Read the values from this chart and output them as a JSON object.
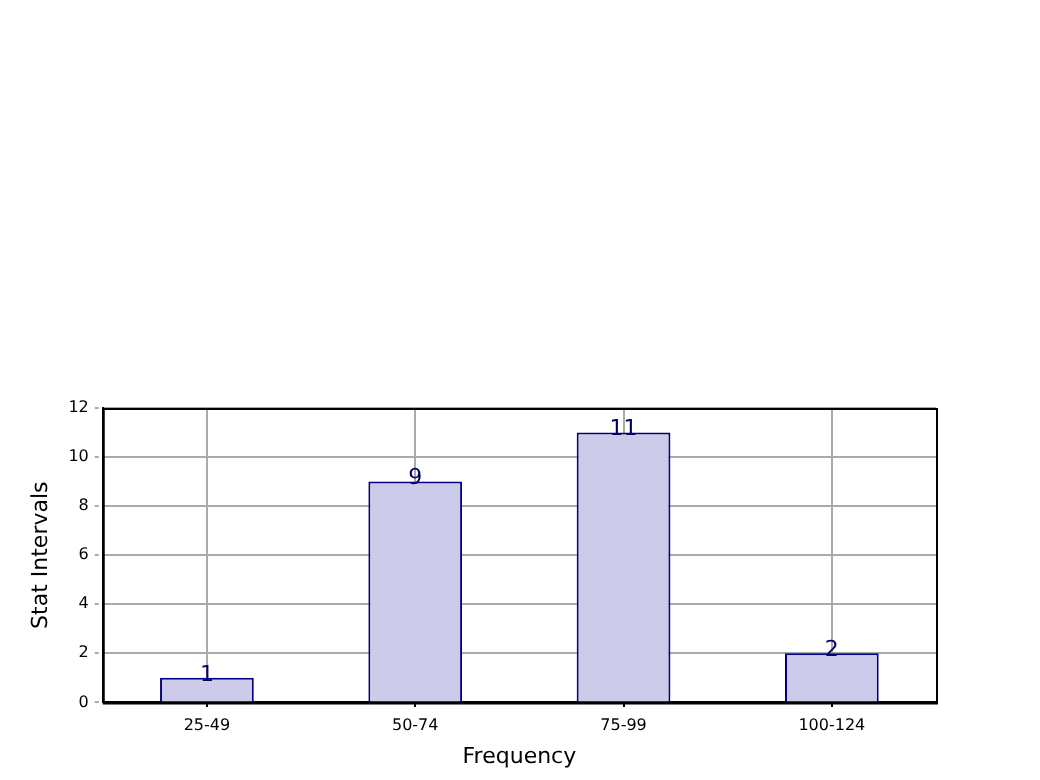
{
  "chart_data": {
    "type": "bar",
    "xlabel": "Frequency",
    "ylabel": "Stat Intervals",
    "categories": [
      "25-49",
      "50-74",
      "75-99",
      "100-124"
    ],
    "values": [
      1,
      9,
      11,
      2
    ],
    "color": "#ccccea",
    "ylim": [
      0,
      12
    ],
    "yticks": [
      0,
      2,
      4,
      6,
      8,
      10,
      12
    ],
    "grid": true,
    "data_labels": true
  }
}
